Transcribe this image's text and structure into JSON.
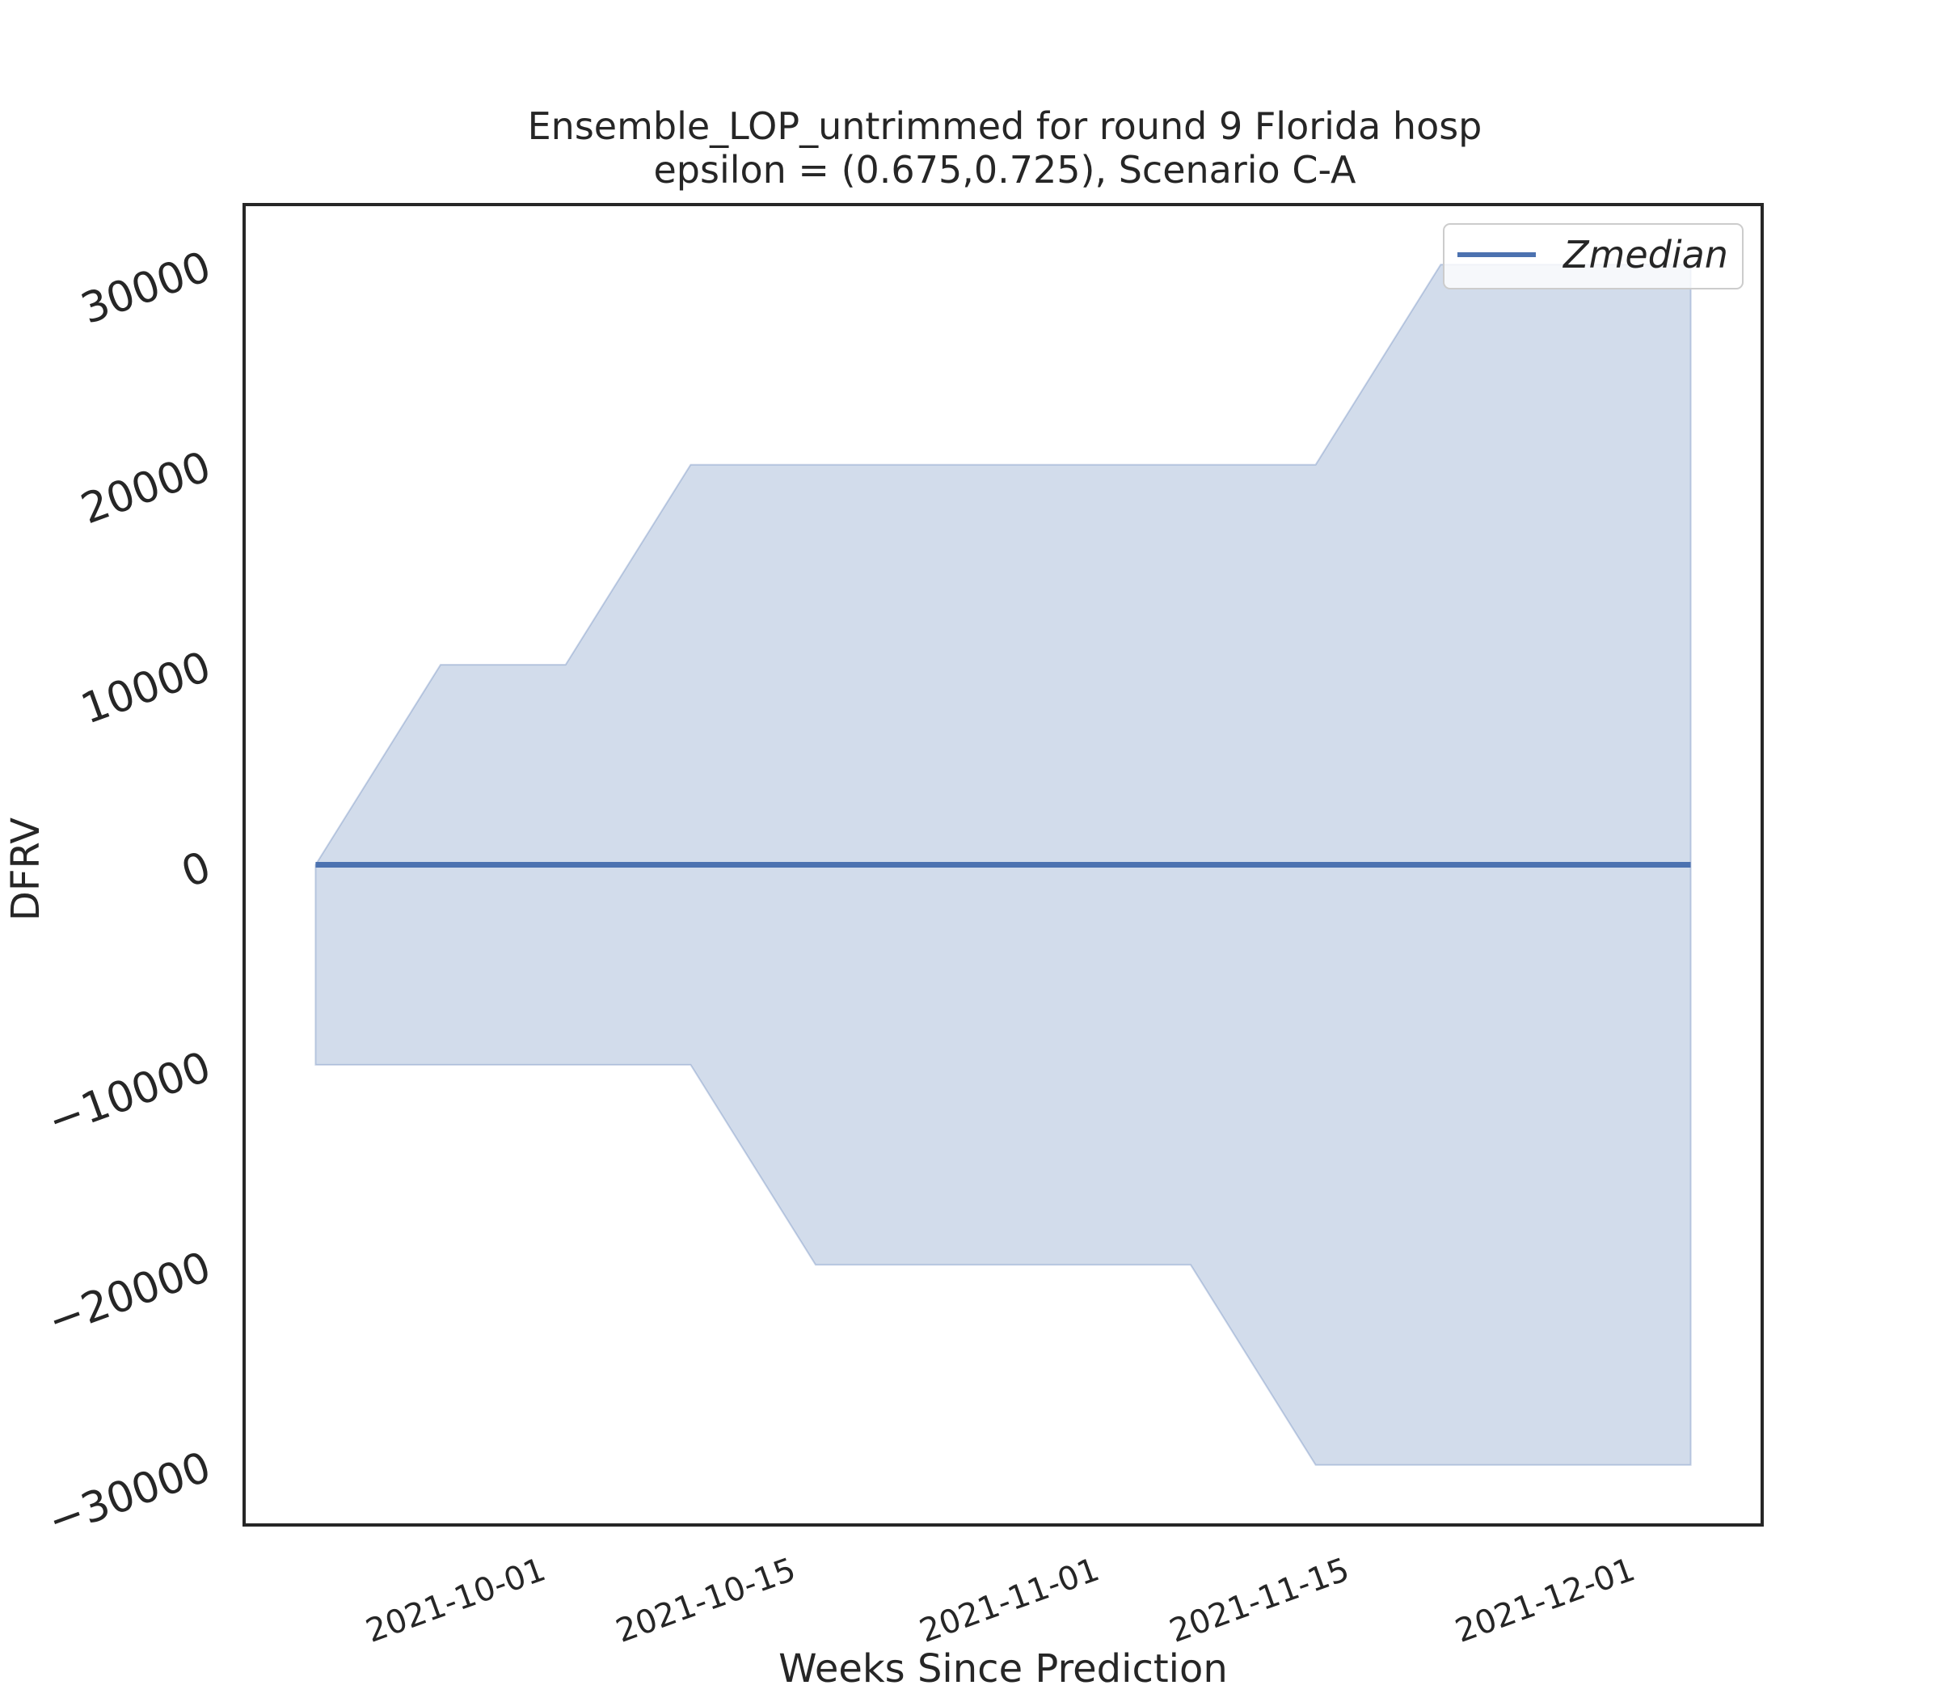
{
  "chart_data": {
    "type": "area",
    "title": "Ensemble_LOP_untrimmed for round 9 Florida  hosp",
    "subtitle": "epsilon = (0.675,0.725), Scenario C-A",
    "xlabel": "Weeks Since Prediction",
    "ylabel": "DFRV",
    "x": [
      "2021-09-18",
      "2021-09-25",
      "2021-10-02",
      "2021-10-09",
      "2021-10-16",
      "2021-10-23",
      "2021-10-30",
      "2021-11-06",
      "2021-11-13",
      "2021-11-20",
      "2021-11-27",
      "2021-12-04"
    ],
    "x_ticks": [
      "2021-10-01",
      "2021-10-15",
      "2021-11-01",
      "2021-11-15",
      "2021-12-01"
    ],
    "x_range": [
      "2021-09-14",
      "2021-12-08"
    ],
    "y_ticks": [
      30000,
      20000,
      10000,
      0,
      -10000,
      -20000,
      -30000
    ],
    "y_tick_labels": [
      "30000",
      "20000",
      "10000",
      "0",
      "−10000",
      "−20000",
      "−30000"
    ],
    "ylim": [
      -33000,
      33000
    ],
    "series": [
      {
        "name": "Zmedian",
        "color": "#4c72b0",
        "values": [
          0,
          0,
          0,
          0,
          0,
          0,
          0,
          0,
          0,
          0,
          0,
          0
        ]
      }
    ],
    "band": {
      "color": "#4c72b0",
      "opacity": 0.25,
      "upper": [
        0,
        10000,
        10000,
        20000,
        20000,
        20000,
        20000,
        20000,
        20000,
        30000,
        30000,
        30000
      ],
      "lower": [
        -10000,
        -10000,
        -10000,
        -10000,
        -20000,
        -20000,
        -20000,
        -20000,
        -30000,
        -30000,
        -30000,
        -30000
      ]
    },
    "legend": "top-right",
    "grid": false
  }
}
